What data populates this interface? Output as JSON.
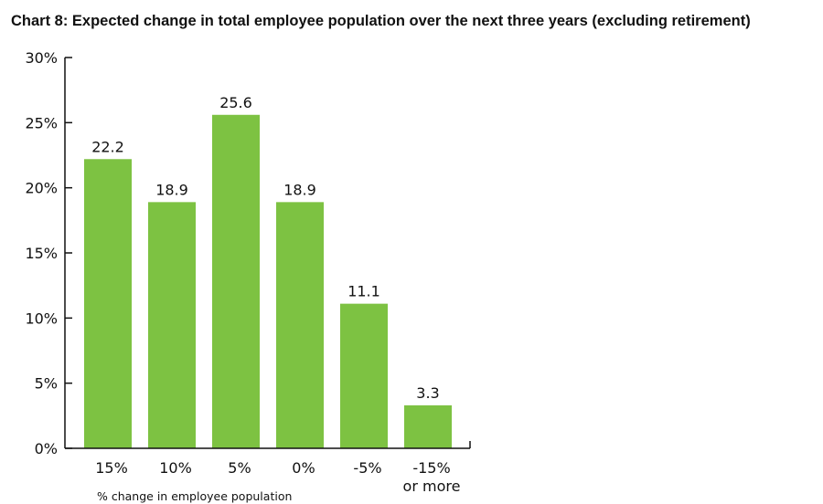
{
  "chart_data": {
    "type": "bar",
    "title": "Chart 8: Expected change in total employee population over the next three years (excluding retirement)",
    "categories": [
      [
        "15%"
      ],
      [
        "10%"
      ],
      [
        "5%"
      ],
      [
        "0%"
      ],
      [
        "-5%"
      ],
      [
        "-15%",
        "or more"
      ]
    ],
    "values": [
      22.2,
      18.9,
      25.6,
      18.9,
      11.1,
      3.3
    ],
    "value_labels": [
      "22.2",
      "18.9",
      "25.6",
      "18.9",
      "11.1",
      "3.3"
    ],
    "xlabel": "% change in employee population",
    "ylabel": "",
    "ylim": [
      0,
      30
    ],
    "yticks": [
      0,
      5,
      10,
      15,
      20,
      25,
      30
    ],
    "ytick_labels": [
      "0%",
      "5%",
      "10%",
      "15%",
      "20%",
      "25%",
      "30%"
    ],
    "grid": false,
    "legend": "none",
    "bar_color": "#7dc242",
    "axis_color": "#111111"
  }
}
